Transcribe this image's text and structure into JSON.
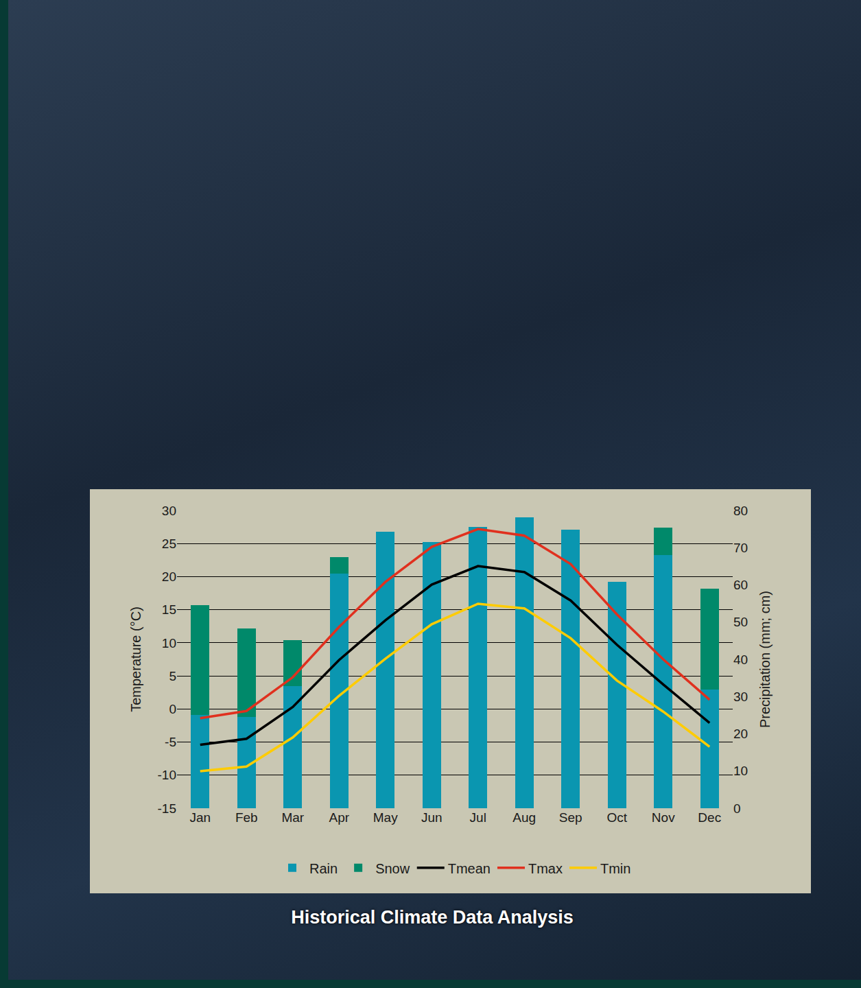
{
  "chart_data": {
    "type": "bar",
    "title": "Historical Climate Data Analysis",
    "ylabel": "Temperature (°C)",
    "y2label": "Precipitation (mm; cm)",
    "categories": [
      "Jan",
      "Feb",
      "Mar",
      "Apr",
      "May",
      "Jun",
      "Jul",
      "Aug",
      "Sep",
      "Oct",
      "Nov",
      "Dec"
    ],
    "series": [
      {
        "name": "Rain",
        "type": "bar",
        "axis": "y2",
        "color": "#0a96b0",
        "values": [
          25.1,
          24.5,
          32.8,
          63.0,
          74.3,
          71.5,
          75.6,
          78.2,
          74.8,
          60.8,
          68.0,
          31.9
        ]
      },
      {
        "name": "Snow",
        "type": "bar",
        "axis": "y2",
        "color": "#00896a",
        "values": [
          29.5,
          23.8,
          12.4,
          4.5,
          0,
          0,
          0,
          0,
          0,
          0,
          7.4,
          27.1
        ]
      },
      {
        "name": "Tmean",
        "type": "line",
        "color": "#000000",
        "values": [
          -5.4,
          -4.5,
          0.3,
          7.4,
          13.4,
          18.8,
          21.6,
          20.7,
          16.4,
          9.7,
          3.7,
          -2.1
        ]
      },
      {
        "name": "Tmax",
        "type": "line",
        "color": "#e0301e",
        "values": [
          -1.4,
          -0.3,
          4.8,
          12.4,
          19.2,
          24.5,
          27.2,
          26.2,
          21.9,
          14.3,
          7.5,
          1.4
        ]
      },
      {
        "name": "Tmin",
        "type": "line",
        "color": "#ffcc00",
        "values": [
          -9.4,
          -8.7,
          -4.3,
          2.0,
          7.6,
          12.8,
          15.9,
          15.2,
          10.7,
          4.3,
          -0.4,
          -5.7
        ]
      }
    ],
    "ylim": [
      -15,
      30
    ],
    "yticks": [
      -15,
      -10,
      -5,
      0,
      5,
      10,
      15,
      20,
      25,
      30
    ],
    "y2lim": [
      0,
      80
    ],
    "y2ticks": [
      0,
      10,
      20,
      30,
      40,
      50,
      60,
      70,
      80
    ],
    "stacked": true,
    "grid": true,
    "legend": "bottom"
  }
}
